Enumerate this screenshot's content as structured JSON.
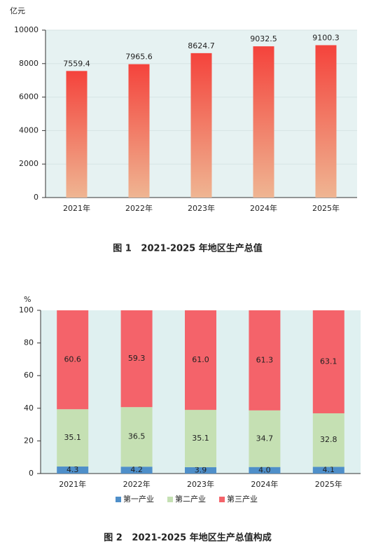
{
  "chart_data": [
    {
      "type": "bar",
      "y_label": "亿元",
      "caption": "图 1   2021-2025 年地区生产总值",
      "categories": [
        "2021年",
        "2022年",
        "2023年",
        "2024年",
        "2025年"
      ],
      "values": [
        7559.4,
        7965.6,
        8624.7,
        9032.5,
        9100.3
      ],
      "gradient": [
        "#f4433c",
        "#efb592"
      ],
      "ylim": [
        0,
        10000
      ],
      "yticks": [
        0,
        2000,
        4000,
        6000,
        8000,
        10000
      ],
      "grid": true
    },
    {
      "type": "stacked_bar",
      "y_label": "%",
      "caption": "图 2   2021-2025 年地区生产总值构成",
      "categories": [
        "2021年",
        "2022年",
        "2023年",
        "2024年",
        "2025年"
      ],
      "series": [
        {
          "name": "第一产业",
          "color": "#4f8fc9",
          "values": [
            4.3,
            4.2,
            3.9,
            4.0,
            4.1
          ],
          "value_labels": [
            "4.3",
            "4.2",
            "3.9",
            "4.0",
            "4.1"
          ]
        },
        {
          "name": "第二产业",
          "color": "#c5e0b3",
          "values": [
            35.1,
            36.5,
            35.1,
            34.7,
            32.8
          ],
          "value_labels": [
            "35.1",
            "36.5",
            "35.1",
            "34.7",
            "32.8"
          ]
        },
        {
          "name": "第三产业",
          "color": "#f4636a",
          "values": [
            60.6,
            59.3,
            61.0,
            61.3,
            63.1
          ],
          "value_labels": [
            "60.6",
            "59.3",
            "61.0",
            "61.3",
            "63.1"
          ]
        }
      ],
      "ylim": [
        0,
        100
      ],
      "yticks": [
        0,
        20,
        40,
        60,
        80,
        100
      ],
      "grid": false
    }
  ]
}
